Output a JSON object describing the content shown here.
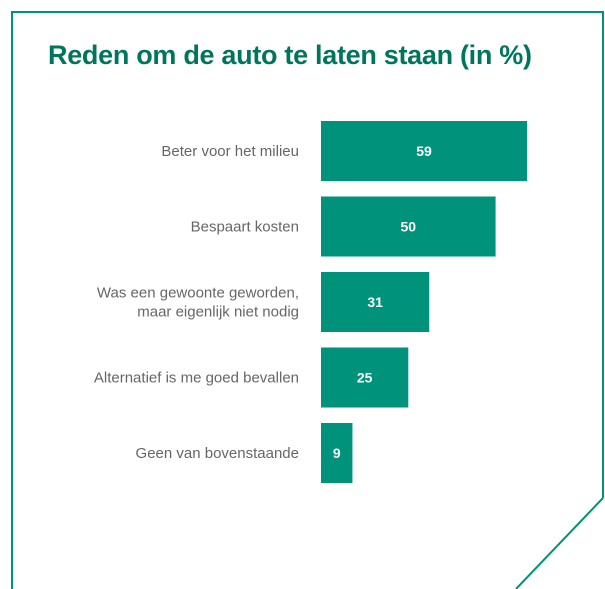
{
  "chart_data": {
    "type": "bar",
    "orientation": "horizontal",
    "title": "Reden om de auto te laten staan (in %)",
    "categories": [
      [
        "Beter voor het milieu"
      ],
      [
        "Bespaart kosten"
      ],
      [
        "Was een gewoonte geworden,",
        "maar eigenlijk niet nodig"
      ],
      [
        "Alternatief is me goed bevallen"
      ],
      [
        "Geen van bovenstaande"
      ]
    ],
    "values": [
      59,
      50,
      31,
      25,
      9
    ],
    "data_labels": [
      "59",
      "50",
      "31",
      "25",
      "9"
    ],
    "xlim": [
      0,
      60
    ],
    "grid": false,
    "legend": "none"
  },
  "colors": {
    "bar": "#00927a",
    "title": "#00755e",
    "frame": "#00927a",
    "category_text": "#666666",
    "value_text": "#ffffff"
  }
}
